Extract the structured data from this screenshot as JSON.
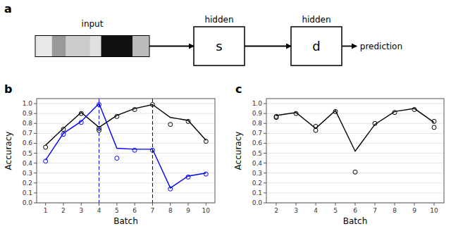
{
  "chart_data": [
    {
      "type": "diagram",
      "title": "a",
      "annotations": [
        "input",
        "hidden",
        "s",
        "hidden",
        "d",
        "prediction"
      ],
      "values": [
        0.038,
        0.032,
        0.055,
        0.025,
        0.072,
        0.038
      ],
      "colors": [
        "#e8e8e8",
        "#999999",
        "#cccccc",
        "#e0e0e0",
        "#111111",
        "#bbbbbb"
      ]
    },
    {
      "type": "line",
      "title": "b",
      "xlabel": "Batch",
      "ylabel": "Accuracy",
      "xlim": [
        0.5,
        10.5
      ],
      "ylim": [
        0.0,
        1.05
      ],
      "xticks": [
        1,
        2,
        3,
        4,
        5,
        6,
        7,
        8,
        9,
        10
      ],
      "yticks": [
        {
          "value": 0,
          "label": "0.0"
        },
        0.1,
        0.2,
        0.3,
        0.4,
        0.5,
        0.6,
        0.7,
        0.8,
        0.9,
        {
          "value": 1,
          "label": "1.0"
        }
      ],
      "grid": true,
      "series": [
        {
          "type": "line",
          "color": "#000000",
          "x": [
            1,
            2,
            3,
            4,
            5,
            6,
            7,
            8,
            9,
            10
          ],
          "values": [
            0.58,
            0.75,
            0.91,
            0.76,
            0.88,
            0.95,
            0.99,
            0.86,
            0.83,
            0.63
          ]
        },
        {
          "type": "scatter",
          "color": "#000000",
          "marker": "open-circle",
          "x": [
            1,
            2,
            3,
            4,
            4,
            5,
            6,
            7,
            8,
            9,
            10
          ],
          "values": [
            0.56,
            0.74,
            0.9,
            0.75,
            0.73,
            0.87,
            0.94,
            0.99,
            0.79,
            0.82,
            0.62
          ]
        },
        {
          "type": "line",
          "color": "#0000ff",
          "x": [
            1,
            2,
            3,
            4,
            5,
            6,
            7,
            8,
            9,
            10
          ],
          "values": [
            0.43,
            0.7,
            0.82,
            1.0,
            0.55,
            0.54,
            0.54,
            0.15,
            0.27,
            0.3
          ]
        },
        {
          "type": "scatter",
          "color": "#0000ff",
          "marker": "open-circle",
          "x": [
            1,
            2,
            3,
            4,
            5,
            6,
            7,
            8,
            9,
            10
          ],
          "values": [
            0.42,
            0.69,
            0.81,
            0.99,
            0.45,
            0.53,
            0.53,
            0.14,
            0.26,
            0.29
          ]
        },
        {
          "type": "vline",
          "color": "#0000ff",
          "line_style": "dashed",
          "x": [
            4
          ]
        },
        {
          "type": "vline",
          "color": "#000000",
          "line_style": "dashed",
          "x": [
            7
          ]
        }
      ]
    },
    {
      "type": "line",
      "title": "c",
      "xlabel": "Batch",
      "ylabel": "Accuracy",
      "xlim": [
        1.5,
        10.5
      ],
      "ylim": [
        0.0,
        1.05
      ],
      "xticks": [
        2,
        3,
        4,
        5,
        6,
        7,
        8,
        9,
        10
      ],
      "yticks": [
        {
          "value": 0,
          "label": "0.0"
        },
        0.1,
        0.2,
        0.3,
        0.4,
        0.5,
        0.6,
        0.7,
        0.8,
        0.9,
        {
          "value": 1,
          "label": "1.0"
        }
      ],
      "grid": true,
      "series": [
        {
          "type": "line",
          "color": "#000000",
          "x": [
            2,
            3,
            4,
            5,
            6,
            7,
            8,
            9,
            10
          ],
          "values": [
            0.88,
            0.91,
            0.75,
            0.93,
            0.52,
            0.79,
            0.92,
            0.95,
            0.81
          ]
        },
        {
          "type": "scatter",
          "color": "#000000",
          "marker": "open-circle",
          "x": [
            2,
            2,
            3,
            4,
            4,
            5,
            6,
            7,
            8,
            9,
            10,
            10
          ],
          "values": [
            0.87,
            0.86,
            0.9,
            0.77,
            0.73,
            0.92,
            0.31,
            0.8,
            0.91,
            0.94,
            0.82,
            0.76
          ]
        }
      ]
    }
  ]
}
